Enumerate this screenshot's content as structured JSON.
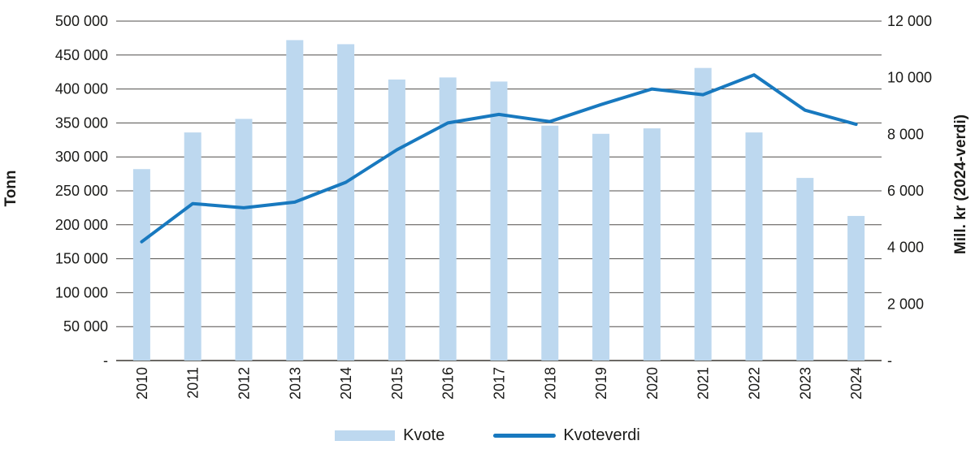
{
  "chart_data": {
    "type": "bar+line",
    "categories": [
      "2010",
      "2011",
      "2012",
      "2013",
      "2014",
      "2015",
      "2016",
      "2017",
      "2018",
      "2019",
      "2020",
      "2021",
      "2022",
      "2023",
      "2024"
    ],
    "series": [
      {
        "name": "Kvote",
        "kind": "bar",
        "axis": "left",
        "color": "#BDD8EF",
        "values": [
          282000,
          336000,
          356000,
          472000,
          466000,
          414000,
          417000,
          411000,
          346000,
          334000,
          342000,
          431000,
          336000,
          269000,
          213000
        ]
      },
      {
        "name": "Kvoteverdi",
        "kind": "line",
        "axis": "right",
        "color": "#1879BF",
        "values": [
          4200,
          5550,
          5400,
          5600,
          6300,
          7450,
          8400,
          8700,
          8450,
          9050,
          9600,
          9400,
          10100,
          8850,
          8350
        ]
      }
    ],
    "left_axis": {
      "title": "Tonn",
      "min": 0,
      "max": 500000,
      "step": 50000,
      "tick_labels_bottom_up": [
        "-",
        "50 000",
        "100 000",
        "150 000",
        "200 000",
        "250 000",
        "300 000",
        "350 000",
        "400 000",
        "450 000",
        "500 000"
      ]
    },
    "right_axis": {
      "title": "Mill. kr (2024-verdi)",
      "min": 0,
      "max": 12000,
      "step": 2000,
      "tick_labels_bottom_up": [
        "-",
        "2 000",
        "4 000",
        "6 000",
        "8 000",
        "10 000",
        "12 000"
      ]
    },
    "legend": {
      "position": "bottom",
      "items": [
        {
          "label": "Kvote",
          "swatch": "bar"
        },
        {
          "label": "Kvoteverdi",
          "swatch": "line"
        }
      ]
    },
    "grid": true,
    "colors": {
      "bar": "#BDD8EF",
      "line": "#1879BF",
      "gridline": "#514F4C",
      "zero_line": "#6B6965",
      "text": "#1A1A18"
    }
  }
}
